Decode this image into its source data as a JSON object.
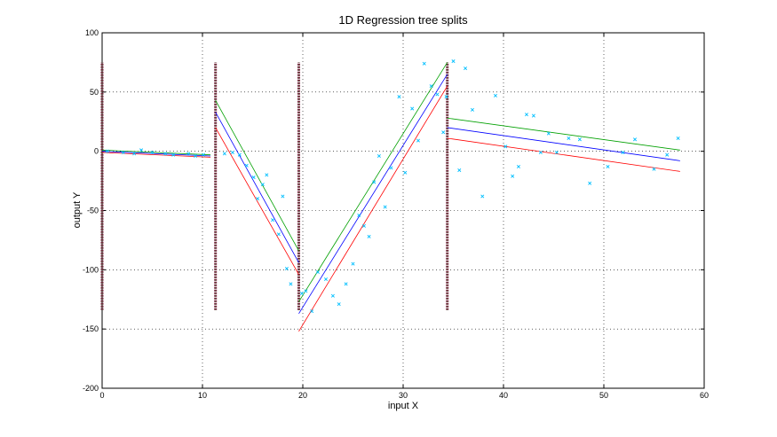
{
  "chart_data": {
    "type": "line",
    "title": "1D Regression tree splits",
    "xlabel": "input X",
    "ylabel": "output Y",
    "xlim": [
      0,
      60
    ],
    "ylim": [
      -200,
      100
    ],
    "xticks": [
      0,
      10,
      20,
      30,
      40,
      50,
      60
    ],
    "yticks": [
      -200,
      -150,
      -100,
      -50,
      0,
      50,
      100
    ],
    "grid": "dotted",
    "split_lines": [
      {
        "x": 0,
        "y_range": [
          -134,
          75
        ]
      },
      {
        "x": 11.3,
        "y_range": [
          -134,
          75
        ]
      },
      {
        "x": 19.6,
        "y_range": [
          -134,
          75
        ]
      },
      {
        "x": 34.4,
        "y_range": [
          -134,
          75
        ]
      }
    ],
    "segments": [
      {
        "x_range": [
          0,
          10.8
        ],
        "green": [
          1,
          -3
        ],
        "blue": [
          0,
          -4
        ],
        "red": [
          -1,
          -5
        ]
      },
      {
        "x_range": [
          11.3,
          19.6
        ],
        "green": [
          43,
          -84
        ],
        "blue": [
          33,
          -94
        ],
        "red": [
          20,
          -104
        ]
      },
      {
        "x_range": [
          19.6,
          34.4
        ],
        "green": [
          -127,
          75
        ],
        "blue": [
          -137,
          65
        ],
        "red": [
          -152,
          55
        ]
      },
      {
        "x_range": [
          34.4,
          57.6
        ],
        "green": [
          28,
          1
        ],
        "blue": [
          20,
          -8
        ],
        "red": [
          11,
          -17
        ]
      }
    ],
    "line_colors": {
      "green": "#00a000",
      "blue": "#0000ff",
      "red": "#ff0000"
    },
    "points": {
      "color": "#00bfff",
      "marker": "x",
      "x": [
        0.5,
        2.1,
        3.2,
        3.9,
        5.0,
        6.3,
        7.1,
        8.6,
        9.3,
        10.1,
        12.2,
        13.0,
        13.7,
        14.4,
        15.1,
        15.5,
        16.0,
        16.4,
        17.0,
        17.6,
        18.0,
        18.4,
        18.8,
        19.9,
        20.3,
        20.9,
        21.5,
        22.3,
        23.0,
        23.6,
        24.3,
        25.0,
        25.6,
        26.1,
        26.6,
        27.1,
        27.6,
        28.2,
        28.8,
        29.6,
        30.2,
        30.9,
        31.5,
        32.1,
        32.8,
        33.4,
        34.0,
        34.3,
        35.0,
        35.6,
        36.2,
        36.9,
        37.9,
        39.2,
        40.2,
        40.9,
        41.5,
        42.3,
        43.0,
        43.7,
        44.5,
        45.3,
        46.5,
        47.6,
        48.6,
        50.4,
        51.9,
        53.1,
        55.0,
        56.3,
        57.4
      ],
      "y": [
        0,
        -1,
        -2,
        1,
        -1,
        -2,
        -3,
        -2,
        -4,
        -3,
        -2,
        -1,
        -3,
        -12,
        -22,
        -40,
        -28,
        -20,
        -58,
        -70,
        -38,
        -99,
        -112,
        -120,
        -118,
        -135,
        -102,
        -108,
        -122,
        -129,
        -112,
        -95,
        -54,
        -63,
        -72,
        -26,
        -4,
        -47,
        -14,
        46,
        -18,
        36,
        9,
        74,
        55,
        48,
        16,
        46,
        76,
        -16,
        70,
        35,
        -38,
        47,
        4,
        -21,
        -13,
        31,
        30,
        -1,
        15,
        -1,
        11,
        10,
        -27,
        -13,
        -1,
        10,
        -15,
        -3,
        11
      ]
    }
  }
}
